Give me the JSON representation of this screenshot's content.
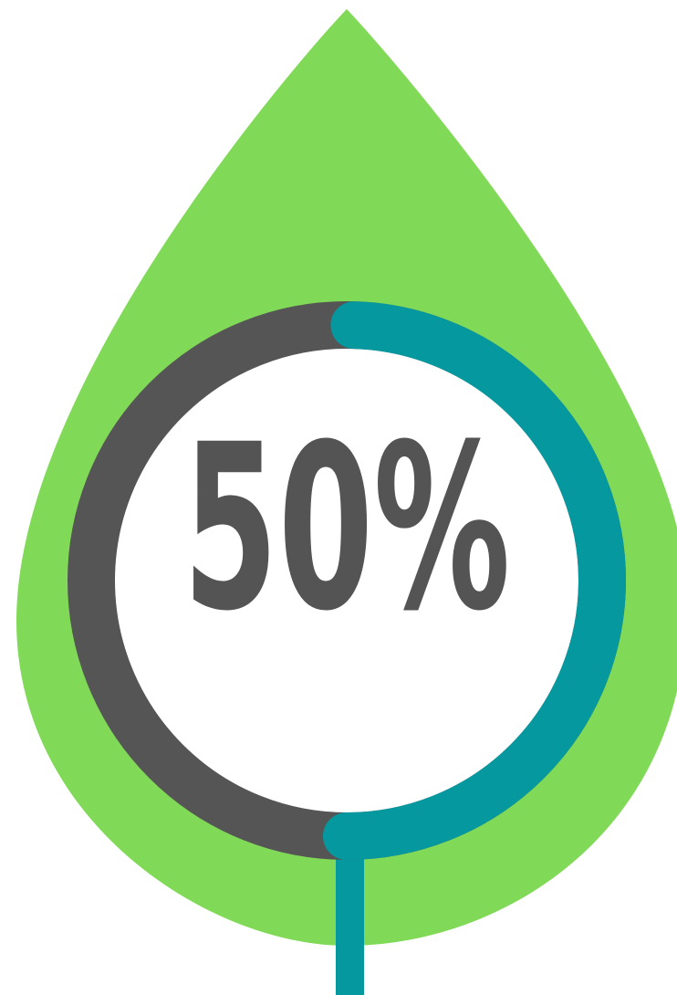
{
  "chart_data": {
    "type": "gauge",
    "values": [
      50
    ],
    "value_labels": [
      "50%"
    ],
    "ylim": [
      0,
      100
    ],
    "color": "#05989f",
    "track_color": "#555555"
  }
}
